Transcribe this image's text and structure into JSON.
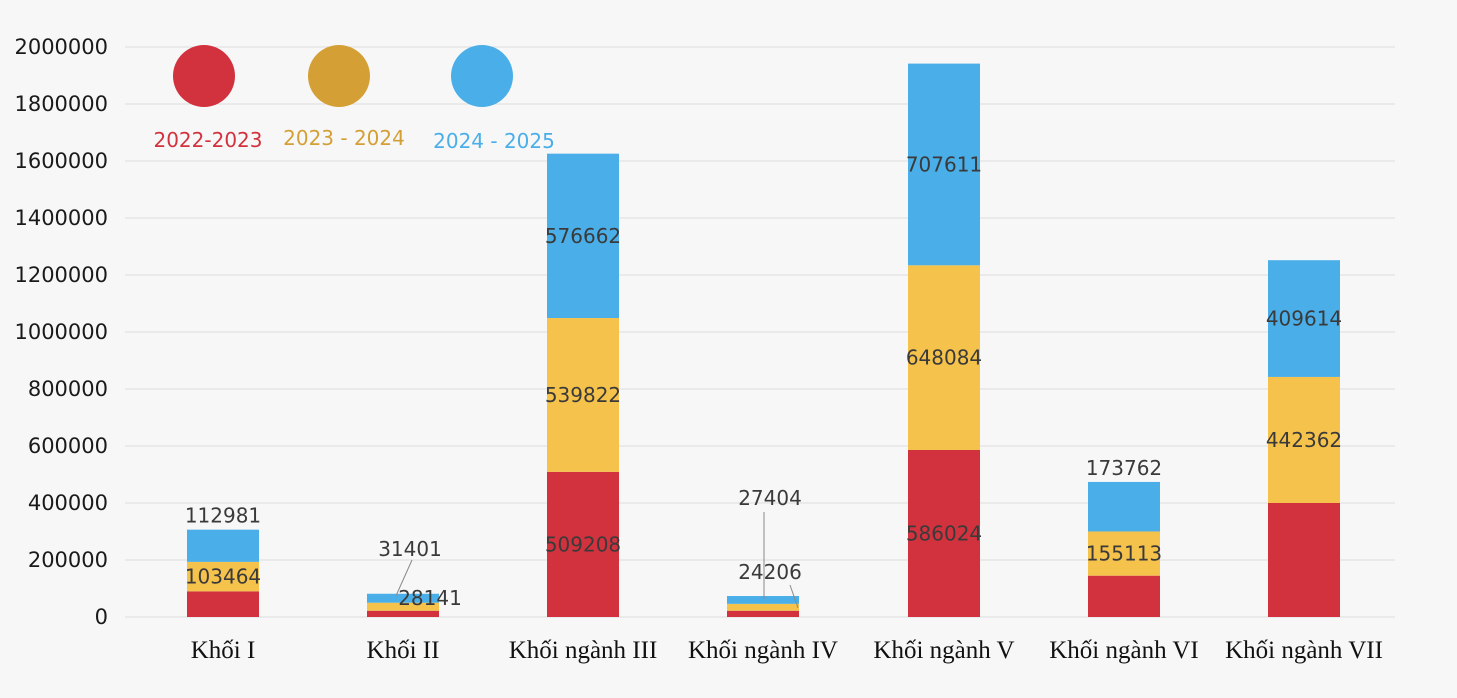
{
  "chart_data": {
    "type": "bar",
    "stacked": true,
    "categories": [
      "Khối I",
      "Khối II",
      "Khối ngành III",
      "Khối ngành IV",
      "Khối ngành V",
      "Khối ngành VI",
      "Khối ngành VII"
    ],
    "series": [
      {
        "name": "2022-2023",
        "color": "#d2323e",
        "values": [
          90000,
          22000,
          509208,
          22000,
          586024,
          145000,
          400000
        ]
      },
      {
        "name": "2023 - 2024",
        "color": "#f5c24c",
        "values": [
          103464,
          28141,
          539822,
          24206,
          648084,
          155113,
          442362
        ]
      },
      {
        "name": "2024 - 2025",
        "color": "#4aaee8",
        "values": [
          112981,
          31401,
          576662,
          27404,
          707611,
          173762,
          409614
        ]
      }
    ],
    "data_labels": [
      [
        "",
        "",
        "509208",
        "",
        "586024",
        "",
        ""
      ],
      [
        "103464",
        "28141",
        "539822",
        "24206",
        "648084",
        "155113",
        "442362"
      ],
      [
        "112981",
        "31401",
        "576662",
        "27404",
        "707611",
        "173762",
        "409614"
      ]
    ],
    "legend_marker_colors": [
      "#d2323e",
      "#d4a035",
      "#4aaee8"
    ],
    "legend_text_colors": [
      "#d2323e",
      "#d4a035",
      "#4aaee8"
    ],
    "legend_position": "top-left",
    "title": "",
    "xlabel": "",
    "ylabel": "",
    "ylim": [
      0,
      2000000
    ],
    "yticks": [
      0,
      200000,
      400000,
      600000,
      800000,
      1000000,
      1200000,
      1400000,
      1600000,
      1800000,
      2000000
    ],
    "ytick_labels": [
      "0",
      "200000",
      "400000",
      "600000",
      "800000",
      "1000000",
      "1200000",
      "1400000",
      "1600000",
      "1800000",
      "2000000"
    ],
    "grid": true
  }
}
